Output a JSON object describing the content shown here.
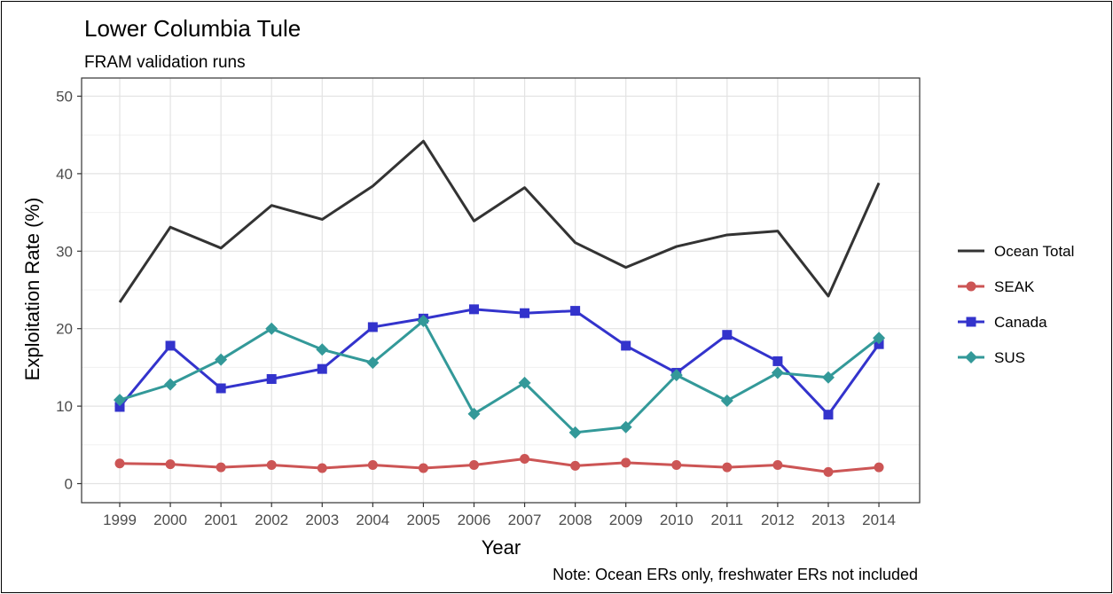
{
  "chart_data": {
    "type": "line",
    "title": "Lower Columbia Tule",
    "subtitle": "FRAM validation runs",
    "xlabel": "Year",
    "ylabel": "Exploitation Rate (%)",
    "note": "Note: Ocean ERs only, freshwater ERs not included",
    "x": [
      "1999",
      "2000",
      "2001",
      "2002",
      "2003",
      "2004",
      "2005",
      "2006",
      "2007",
      "2008",
      "2009",
      "2010",
      "2011",
      "2012",
      "2013",
      "2014"
    ],
    "ylim": [
      0,
      50
    ],
    "yticks": [
      "0",
      "10",
      "20",
      "30",
      "40",
      "50"
    ],
    "grid": true,
    "legend_position": "right",
    "series": [
      {
        "name": "Ocean Total",
        "color": "#333333",
        "marker": "none",
        "values": [
          23.4,
          33.1,
          30.4,
          35.9,
          34.1,
          38.4,
          44.2,
          33.9,
          38.2,
          31.1,
          27.9,
          30.6,
          32.1,
          32.6,
          24.2,
          38.8
        ]
      },
      {
        "name": "SEAK",
        "color": "#cc5555",
        "marker": "circle",
        "values": [
          2.6,
          2.5,
          2.1,
          2.4,
          2.0,
          2.4,
          2.0,
          2.4,
          3.2,
          2.3,
          2.7,
          2.4,
          2.1,
          2.4,
          1.5,
          2.1
        ]
      },
      {
        "name": "Canada",
        "color": "#3333cc",
        "marker": "square",
        "values": [
          9.9,
          17.8,
          12.3,
          13.5,
          14.8,
          20.2,
          21.3,
          22.5,
          22.0,
          22.3,
          17.8,
          14.3,
          19.2,
          15.8,
          8.9,
          18.0
        ]
      },
      {
        "name": "SUS",
        "color": "#339999",
        "marker": "diamond",
        "values": [
          10.8,
          12.8,
          16.0,
          20.0,
          17.3,
          15.6,
          21.0,
          9.0,
          13.0,
          6.6,
          7.3,
          14.0,
          10.7,
          14.3,
          13.7,
          18.8
        ]
      }
    ]
  }
}
